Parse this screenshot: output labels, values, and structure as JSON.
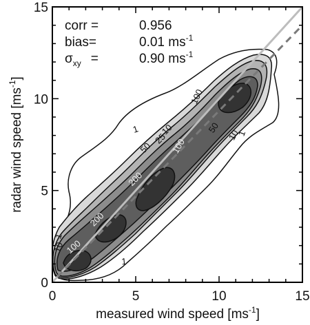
{
  "chart_data": {
    "type": "contour",
    "xlabel": "measured wind speed [ms-1]",
    "ylabel": "radar wind speed [ms-1]",
    "xlim": [
      0,
      15
    ],
    "ylim": [
      0,
      15
    ],
    "xticks": [
      "0",
      "5",
      "10",
      "15"
    ],
    "yticks": [
      "0",
      "5",
      "10",
      "15"
    ],
    "grid": false,
    "stats": [
      {
        "name": "corr",
        "value": "0.956"
      },
      {
        "name": "bias",
        "value": "0.01 ms-1"
      },
      {
        "name": "σxy",
        "value": "0.90 ms-1"
      }
    ],
    "contour_levels": [
      1,
      10,
      25,
      50,
      100,
      200
    ],
    "contour_labels": [
      {
        "text": "1",
        "x": 5.0,
        "y": 8.3,
        "rot": -18
      },
      {
        "text": "1",
        "x": 4.3,
        "y": 1.1,
        "rot": -5
      },
      {
        "text": "1",
        "x": 11.4,
        "y": 8.1,
        "rot": -70
      },
      {
        "text": "1",
        "x": 0.4,
        "y": 2.5,
        "rot": -70
      },
      {
        "text": "10",
        "x": 6.9,
        "y": 8.3,
        "rot": -45
      },
      {
        "text": "10",
        "x": 10.9,
        "y": 8.0,
        "rot": -60
      },
      {
        "text": "10",
        "x": 0.4,
        "y": 1.9,
        "rot": -70
      },
      {
        "text": "25",
        "x": 6.5,
        "y": 7.8,
        "rot": -45
      },
      {
        "text": "50",
        "x": 5.6,
        "y": 7.3,
        "rot": -45
      },
      {
        "text": "50",
        "x": 9.7,
        "y": 8.4,
        "rot": -55
      },
      {
        "text": "100",
        "x": 7.6,
        "y": 7.4,
        "rot": -60
      },
      {
        "text": "100",
        "x": 8.7,
        "y": 10.1,
        "rot": -65
      },
      {
        "text": "100",
        "x": 1.3,
        "y": 1.9,
        "rot": -40
      },
      {
        "text": "200",
        "x": 5.0,
        "y": 5.6,
        "rot": -45
      },
      {
        "text": "200",
        "x": 2.7,
        "y": 3.4,
        "rot": -45
      }
    ],
    "reference_lines": [
      {
        "name": "one-to-one line",
        "x": [
          0,
          15
        ],
        "y": [
          0,
          15
        ],
        "color": "#bdbdbd",
        "style": "solid"
      },
      {
        "name": "regression fit",
        "x": [
          0.3,
          15
        ],
        "y": [
          0.3,
          14.0
        ],
        "color": "#7a7a7a",
        "style": "dashed"
      }
    ],
    "shading_colors": [
      "#ffffff",
      "#d9d9d9",
      "#b3b3b3",
      "#8c8c8c",
      "#5e5e5e",
      "#333333"
    ]
  }
}
